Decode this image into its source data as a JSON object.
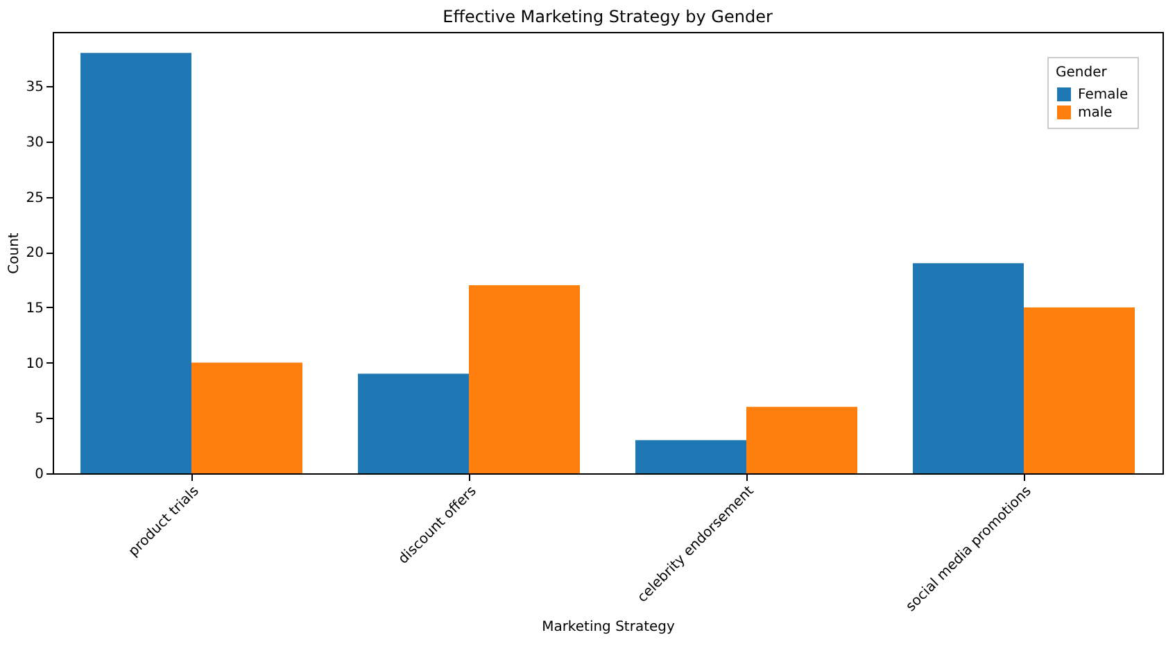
{
  "chart_data": {
    "type": "bar",
    "title": "Effective Marketing Strategy by Gender",
    "xlabel": "Marketing Strategy",
    "ylabel": "Count",
    "legend_title": "Gender",
    "categories": [
      "product trials",
      "discount offers",
      "celebrity endorsement",
      "social media promotions"
    ],
    "series": [
      {
        "name": "Female",
        "color": "#1f77b4",
        "values": [
          38,
          9,
          3,
          19
        ]
      },
      {
        "name": "male",
        "color": "#ff7f0e",
        "values": [
          10,
          17,
          6,
          15
        ]
      }
    ],
    "ylim": [
      0,
      39.9
    ],
    "yticks": [
      0,
      5,
      10,
      15,
      20,
      25,
      30,
      35
    ],
    "grid": false,
    "legend": "top right"
  }
}
